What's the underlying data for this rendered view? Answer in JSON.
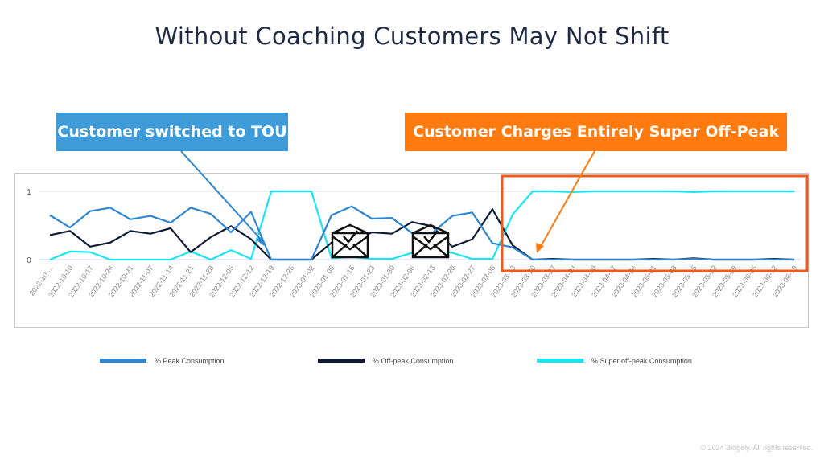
{
  "slide": {
    "title": "Without Coaching Customers May Not Shift",
    "callout_tou": "Customer switched to TOU",
    "callout_super_offpeak": "Customer Charges Entirely Super Off-Peak",
    "footer": "© 2024 Bidgely. All rights reserved.",
    "icons": [
      "envelope-check-icon",
      "envelope-check-icon"
    ]
  },
  "chart_data": {
    "type": "line",
    "title": "",
    "xlabel": "",
    "ylabel": "",
    "ylim": [
      0,
      1
    ],
    "y_ticks": [
      "0",
      "1"
    ],
    "grid": true,
    "legend_position": "bottom",
    "x": [
      "2022-10-...",
      "2022-10-10",
      "2022-10-17",
      "2022-10-24",
      "2022-10-31",
      "2022-11-07",
      "2022-11-14",
      "2022-11-21",
      "2022-11-28",
      "2022-12-05",
      "2022-12-12",
      "2022-12-19",
      "2022-12-26",
      "2023-01-02",
      "2023-01-09",
      "2023-01-16",
      "2023-01-23",
      "2023-01-30",
      "2023-02-06",
      "2023-02-13",
      "2023-02-20",
      "2023-02-27",
      "2023-03-06",
      "2023-03-13",
      "2023-03-20",
      "2023-03-27",
      "2023-04-03",
      "2023-04-10",
      "2023-04-17",
      "2023-04-24",
      "2023-05-01",
      "2023-05-08",
      "2023-05-15",
      "2023-05-22",
      "2023-05-29",
      "2023-06-05",
      "2023-06-12",
      "2023-06-19"
    ],
    "series": [
      {
        "name": "% Peak Consumption",
        "color": "#2e86d1",
        "values": [
          0.65,
          0.47,
          0.71,
          0.76,
          0.59,
          0.64,
          0.54,
          0.76,
          0.67,
          0.4,
          0.7,
          0,
          0,
          0,
          0.65,
          0.78,
          0.6,
          0.61,
          0.39,
          0.39,
          0.64,
          0.69,
          0.24,
          0.18,
          0,
          0,
          0,
          0,
          0,
          0,
          0,
          0,
          0.01,
          0,
          0,
          0,
          0,
          0
        ]
      },
      {
        "name": "% Off-peak Consumption",
        "color": "#0d1b33",
        "values": [
          0.36,
          0.42,
          0.19,
          0.25,
          0.42,
          0.38,
          0.46,
          0.11,
          0.33,
          0.49,
          0.3,
          0,
          0,
          0,
          0.25,
          0.25,
          0.4,
          0.38,
          0.55,
          0.49,
          0.19,
          0.3,
          0.74,
          0.21,
          0,
          0.01,
          0,
          0,
          0,
          0,
          0.01,
          0,
          0.02,
          0,
          0,
          0,
          0.01,
          0
        ]
      },
      {
        "name": "% Super off-peak Consumption",
        "color": "#19e6f5",
        "values": [
          0,
          0.12,
          0.11,
          0,
          0,
          0,
          0,
          0.12,
          0,
          0.14,
          0.01,
          1,
          1,
          1,
          0.02,
          0.04,
          0.01,
          0.01,
          0.1,
          0.15,
          0.1,
          0.01,
          0.01,
          0.66,
          1,
          1,
          0.99,
          1,
          1,
          1,
          1,
          1,
          0.99,
          1,
          1,
          1,
          1,
          1
        ]
      }
    ]
  },
  "colors": {
    "callout_blue": "#3e9bd8",
    "callout_orange": "#ff7a0f",
    "highlight_border": "#f05a1c"
  }
}
